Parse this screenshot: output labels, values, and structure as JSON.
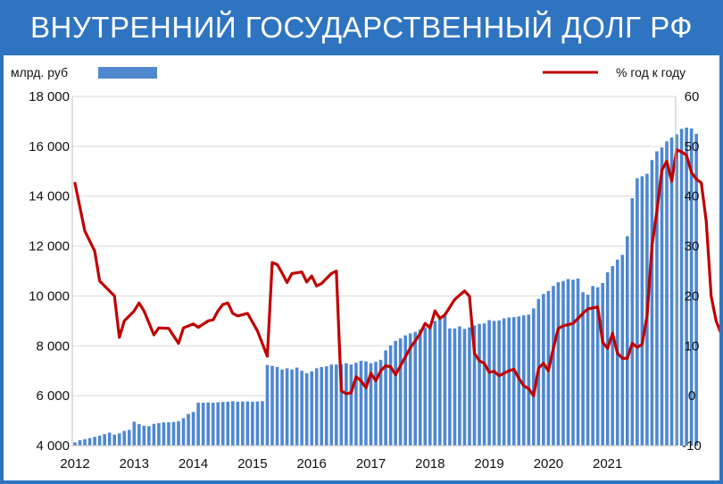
{
  "header": {
    "title": "ВНУТРЕННИЙ ГОСУДАРСТВЕННЫЙ ДОЛГ РФ"
  },
  "colors": {
    "frame": "#2f74c0",
    "bars": "#4f88cf",
    "line": "#c00000"
  },
  "chart_data": {
    "type": "bar",
    "title": "ВНУТРЕННИЙ ГОСУДАРСТВЕННЫЙ ДОЛГ РФ",
    "legend": {
      "bars_label": "млрд. руб",
      "line_label": "% год к году",
      "bars_position": "top-left",
      "line_position": "top-right"
    },
    "x_ticks": [
      "2012",
      "2013",
      "2014",
      "2015",
      "2016",
      "2017",
      "2018",
      "2019",
      "2020",
      "2021"
    ],
    "y_left": {
      "ticks": [
        "4 000",
        "6 000",
        "8 000",
        "10 000",
        "12 000",
        "14 000",
        "16 000",
        "18 000"
      ],
      "range": [
        4000,
        18000
      ]
    },
    "y_right": {
      "ticks": [
        "-10",
        "0",
        "10",
        "20",
        "30",
        "40",
        "50",
        "60"
      ],
      "range": [
        -10,
        60
      ]
    },
    "grid": true,
    "series": [
      {
        "kind": "bar",
        "axis": "left",
        "start": "2012-01",
        "frequency": "monthly",
        "values": [
          4130,
          4220,
          4260,
          4300,
          4350,
          4400,
          4460,
          4520,
          4440,
          4490,
          4590,
          4630,
          4960,
          4860,
          4800,
          4780,
          4870,
          4900,
          4930,
          4940,
          4950,
          4980,
          5100,
          5270,
          5350,
          5720,
          5720,
          5730,
          5720,
          5740,
          5750,
          5760,
          5780,
          5760,
          5770,
          5770,
          5760,
          5770,
          5780,
          7230,
          7200,
          7150,
          7050,
          7100,
          7050,
          7130,
          7000,
          6900,
          6980,
          7100,
          7150,
          7180,
          7250,
          7250,
          7260,
          7300,
          7250,
          7320,
          7400,
          7380,
          7300,
          7360,
          7440,
          7820,
          8020,
          8200,
          8300,
          8420,
          8500,
          8560,
          8660,
          8740,
          8860,
          9000,
          9100,
          9200,
          8700,
          8700,
          8780,
          8680,
          8740,
          8820,
          8880,
          8900,
          9030,
          9000,
          9020,
          9100,
          9140,
          9150,
          9180,
          9220,
          9250,
          9500,
          9880,
          10080,
          10200,
          10400,
          10550,
          10600,
          10680,
          10650,
          10700,
          10150,
          10050,
          10400,
          10350,
          10520,
          10950,
          11200,
          11460,
          11650,
          12400,
          13920,
          14720,
          14800,
          14900,
          15450,
          15800,
          15950,
          16200,
          16350,
          16480,
          16700,
          16750,
          16720,
          16500
        ]
      },
      {
        "kind": "line",
        "axis": "right",
        "points": [
          [
            "2012-01",
            42.6
          ],
          [
            "2012-03",
            33
          ],
          [
            "2012-05",
            29
          ],
          [
            "2012-06",
            23
          ],
          [
            "2012-07",
            22
          ],
          [
            "2012-09",
            20
          ],
          [
            "2012-10",
            11.7
          ],
          [
            "2012-11",
            15
          ],
          [
            "2013-01",
            17
          ],
          [
            "2013-02",
            18.6
          ],
          [
            "2013-03",
            17
          ],
          [
            "2013-05",
            12.2
          ],
          [
            "2013-06",
            13.6
          ],
          [
            "2013-08",
            13.5
          ],
          [
            "2013-10",
            10.5
          ],
          [
            "2013-11",
            13.6
          ],
          [
            "2014-01",
            14.4
          ],
          [
            "2014-02",
            13.7
          ],
          [
            "2014-04",
            15
          ],
          [
            "2014-05",
            15.2
          ],
          [
            "2014-06",
            17
          ],
          [
            "2014-07",
            18.3
          ],
          [
            "2014-08",
            18.6
          ],
          [
            "2014-09",
            16.5
          ],
          [
            "2014-10",
            16
          ],
          [
            "2014-12",
            16.5
          ],
          [
            "2015-02",
            13
          ],
          [
            "2015-04",
            7.9
          ],
          [
            "2015-05",
            26.7
          ],
          [
            "2015-06",
            26.3
          ],
          [
            "2015-07",
            24.6
          ],
          [
            "2015-08",
            22.7
          ],
          [
            "2015-09",
            24.5
          ],
          [
            "2015-11",
            24.8
          ],
          [
            "2015-12",
            22.8
          ],
          [
            "2016-01",
            24
          ],
          [
            "2016-02",
            22
          ],
          [
            "2016-03",
            22.5
          ],
          [
            "2016-05",
            24.5
          ],
          [
            "2016-06",
            25
          ],
          [
            "2016-07",
            1
          ],
          [
            "2016-08",
            0.4
          ],
          [
            "2016-09",
            0.6
          ],
          [
            "2016-10",
            3.8
          ],
          [
            "2016-11",
            3
          ],
          [
            "2016-12",
            1.6
          ],
          [
            "2017-01",
            4.5
          ],
          [
            "2017-02",
            3
          ],
          [
            "2017-03",
            5
          ],
          [
            "2017-04",
            6
          ],
          [
            "2017-05",
            5.8
          ],
          [
            "2017-06",
            4.2
          ],
          [
            "2017-07",
            6
          ],
          [
            "2017-09",
            9.6
          ],
          [
            "2017-10",
            11
          ],
          [
            "2017-11",
            12.5
          ],
          [
            "2017-12",
            14.5
          ],
          [
            "2018-01",
            13.6
          ],
          [
            "2018-02",
            17
          ],
          [
            "2018-03",
            15.5
          ],
          [
            "2018-04",
            16.2
          ],
          [
            "2018-06",
            19.3
          ],
          [
            "2018-08",
            21
          ],
          [
            "2018-09",
            19.9
          ],
          [
            "2018-10",
            8.5
          ],
          [
            "2018-11",
            7
          ],
          [
            "2018-12",
            6.5
          ],
          [
            "2019-01",
            4.7
          ],
          [
            "2019-02",
            4.9
          ],
          [
            "2019-03",
            4
          ],
          [
            "2019-05",
            5
          ],
          [
            "2019-06",
            5.3
          ],
          [
            "2019-07",
            3.5
          ],
          [
            "2019-08",
            2
          ],
          [
            "2019-09",
            1.4
          ],
          [
            "2019-10",
            0
          ],
          [
            "2019-11",
            5.5
          ],
          [
            "2019-12",
            6.5
          ],
          [
            "2020-01",
            5
          ],
          [
            "2020-02",
            9.5
          ],
          [
            "2020-03",
            13.5
          ],
          [
            "2020-04",
            14
          ],
          [
            "2020-06",
            14.5
          ],
          [
            "2020-08",
            16.5
          ],
          [
            "2020-09",
            17.4
          ],
          [
            "2020-10",
            17.6
          ],
          [
            "2020-11",
            17.8
          ],
          [
            "2020-12",
            10.7
          ],
          [
            "2021-01",
            9.5
          ],
          [
            "2021-02",
            12.5
          ],
          [
            "2021-03",
            8.5
          ],
          [
            "2021-04",
            7.5
          ],
          [
            "2021-05",
            7.5
          ],
          [
            "2021-06",
            10.5
          ],
          [
            "2021-07",
            9.7
          ],
          [
            "2021-08",
            10.3
          ],
          [
            "2021-09",
            16
          ],
          [
            "2021-10",
            30
          ],
          [
            "2021-11",
            37
          ],
          [
            "2021-12",
            45.2
          ],
          [
            "2022-01",
            47
          ],
          [
            "2022-02",
            43
          ],
          [
            "2022-03",
            49.3
          ],
          [
            "2022-04",
            48.9
          ],
          [
            "2022-05",
            48.2
          ],
          [
            "2022-06",
            44.8
          ],
          [
            "2022-07",
            43.4
          ],
          [
            "2022-08",
            42.7
          ],
          [
            "2022-09",
            35
          ],
          [
            "2022-10",
            20
          ],
          [
            "2022-11",
            15
          ],
          [
            "2022-12",
            12.5
          ]
        ]
      }
    ]
  }
}
